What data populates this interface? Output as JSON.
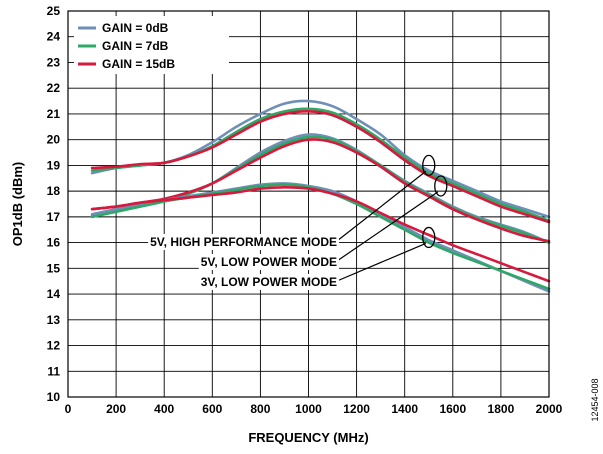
{
  "chart_data": {
    "type": "line",
    "xlabel": "FREQUENCY (MHz)",
    "ylabel": "OP1dB (dBm)",
    "xlim": [
      0,
      2000
    ],
    "ylim": [
      10,
      25
    ],
    "xticks": [
      0,
      200,
      400,
      600,
      800,
      1000,
      1200,
      1400,
      1600,
      1800,
      2000
    ],
    "yticks": [
      10,
      11,
      12,
      13,
      14,
      15,
      16,
      17,
      18,
      19,
      20,
      21,
      22,
      23,
      24,
      25
    ],
    "grid": true,
    "legend_position": "top-left",
    "legend": [
      {
        "label": "GAIN = 0dB",
        "color": "#6f8fb7"
      },
      {
        "label": "GAIN = 7dB",
        "color": "#2fa867"
      },
      {
        "label": "GAIN = 15dB",
        "color": "#d6193c"
      }
    ],
    "x": [
      100,
      200,
      300,
      400,
      500,
      600,
      700,
      800,
      900,
      1000,
      1100,
      1200,
      1300,
      1400,
      1500,
      1600,
      1700,
      1800,
      1900,
      2000
    ],
    "series": [
      {
        "mode": "5V, HIGH PERFORMANCE MODE",
        "gain": "GAIN = 0dB",
        "color": "#6f8fb7",
        "values": [
          18.7,
          18.9,
          19.0,
          19.1,
          19.4,
          19.9,
          20.5,
          21.0,
          21.4,
          21.5,
          21.3,
          20.8,
          20.2,
          19.4,
          18.8,
          18.4,
          18.0,
          17.6,
          17.3,
          17.0
        ]
      },
      {
        "mode": "5V, HIGH PERFORMANCE MODE",
        "gain": "GAIN = 7dB",
        "color": "#2fa867",
        "values": [
          18.8,
          18.9,
          19.0,
          19.1,
          19.35,
          19.75,
          20.3,
          20.8,
          21.1,
          21.2,
          21.05,
          20.6,
          20.0,
          19.3,
          18.7,
          18.3,
          17.9,
          17.5,
          17.2,
          16.85
        ]
      },
      {
        "mode": "5V, HIGH PERFORMANCE MODE",
        "gain": "GAIN = 15dB",
        "color": "#d6193c",
        "values": [
          18.9,
          18.95,
          19.05,
          19.1,
          19.35,
          19.7,
          20.2,
          20.7,
          21.0,
          21.1,
          20.95,
          20.5,
          19.9,
          19.2,
          18.6,
          18.2,
          17.8,
          17.4,
          17.1,
          16.8
        ]
      },
      {
        "mode": "5V, LOW POWER MODE",
        "gain": "GAIN = 0dB",
        "color": "#6f8fb7",
        "values": [
          17.0,
          17.2,
          17.4,
          17.6,
          17.9,
          18.3,
          18.9,
          19.5,
          19.95,
          20.2,
          20.05,
          19.6,
          19.0,
          18.4,
          17.9,
          17.4,
          17.0,
          16.7,
          16.4,
          16.0
        ]
      },
      {
        "mode": "5V, LOW POWER MODE",
        "gain": "GAIN = 7dB",
        "color": "#2fa867",
        "values": [
          17.05,
          17.25,
          17.45,
          17.65,
          17.9,
          18.3,
          18.85,
          19.4,
          19.85,
          20.1,
          20.0,
          19.55,
          19.0,
          18.35,
          17.85,
          17.35,
          16.95,
          16.65,
          16.35,
          16.0
        ]
      },
      {
        "mode": "5V, LOW POWER MODE",
        "gain": "GAIN = 15dB",
        "color": "#d6193c",
        "values": [
          17.3,
          17.4,
          17.55,
          17.7,
          17.95,
          18.3,
          18.8,
          19.3,
          19.75,
          20.0,
          19.9,
          19.5,
          18.95,
          18.3,
          17.8,
          17.3,
          16.9,
          16.55,
          16.25,
          16.05
        ]
      },
      {
        "mode": "3V, LOW POWER MODE",
        "gain": "GAIN = 0dB",
        "color": "#6f8fb7",
        "values": [
          17.1,
          17.3,
          17.5,
          17.65,
          17.8,
          17.95,
          18.1,
          18.25,
          18.3,
          18.2,
          18.0,
          17.6,
          17.1,
          16.6,
          16.1,
          15.7,
          15.3,
          14.9,
          14.5,
          14.1
        ]
      },
      {
        "mode": "3V, LOW POWER MODE",
        "gain": "GAIN = 7dB",
        "color": "#2fa867",
        "values": [
          17.0,
          17.2,
          17.4,
          17.6,
          17.75,
          17.9,
          18.05,
          18.2,
          18.25,
          18.15,
          17.9,
          17.5,
          17.0,
          16.5,
          16.0,
          15.6,
          15.25,
          14.9,
          14.55,
          14.2
        ]
      },
      {
        "mode": "3V, LOW POWER MODE",
        "gain": "GAIN = 15dB",
        "color": "#d6193c",
        "values": [
          17.3,
          17.4,
          17.55,
          17.65,
          17.75,
          17.85,
          17.95,
          18.1,
          18.15,
          18.1,
          17.9,
          17.6,
          17.15,
          16.7,
          16.3,
          15.9,
          15.55,
          15.2,
          14.85,
          14.5
        ]
      }
    ],
    "annotations": [
      {
        "text": "5V, HIGH PERFORMANCE MODE",
        "target": [
          1500,
          19.0
        ]
      },
      {
        "text": "5V, LOW POWER MODE",
        "target": [
          1550,
          18.2
        ]
      },
      {
        "text": "3V, LOW POWER MODE",
        "target": [
          1500,
          16.2
        ]
      }
    ],
    "figure_id": "12454-008"
  }
}
